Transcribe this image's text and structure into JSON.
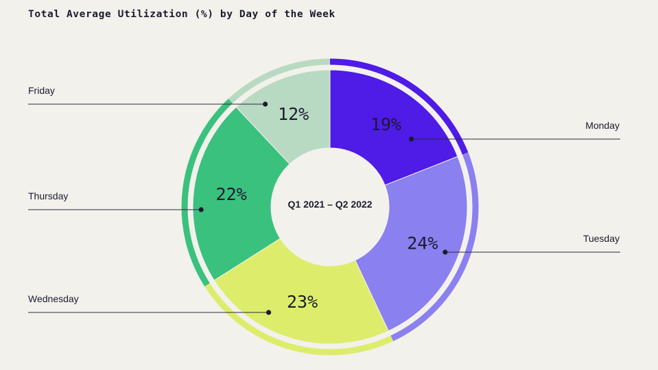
{
  "chart_data": {
    "type": "pie",
    "title": "Total Average Utilization (%) by Day of the Week",
    "center_label": "Q1 2021 – Q2 2022",
    "categories": [
      "Monday",
      "Tuesday",
      "Wednesday",
      "Thursday",
      "Friday"
    ],
    "values": [
      19,
      24,
      23,
      22,
      12
    ],
    "value_labels": [
      "19%",
      "24%",
      "23%",
      "22%",
      "12%"
    ],
    "colors": [
      "#4f1be6",
      "#8a80ef",
      "#dded6b",
      "#3ac17e",
      "#b9dac2"
    ],
    "start_angle": "top",
    "direction": "clockwise",
    "legend": "callout labels"
  }
}
